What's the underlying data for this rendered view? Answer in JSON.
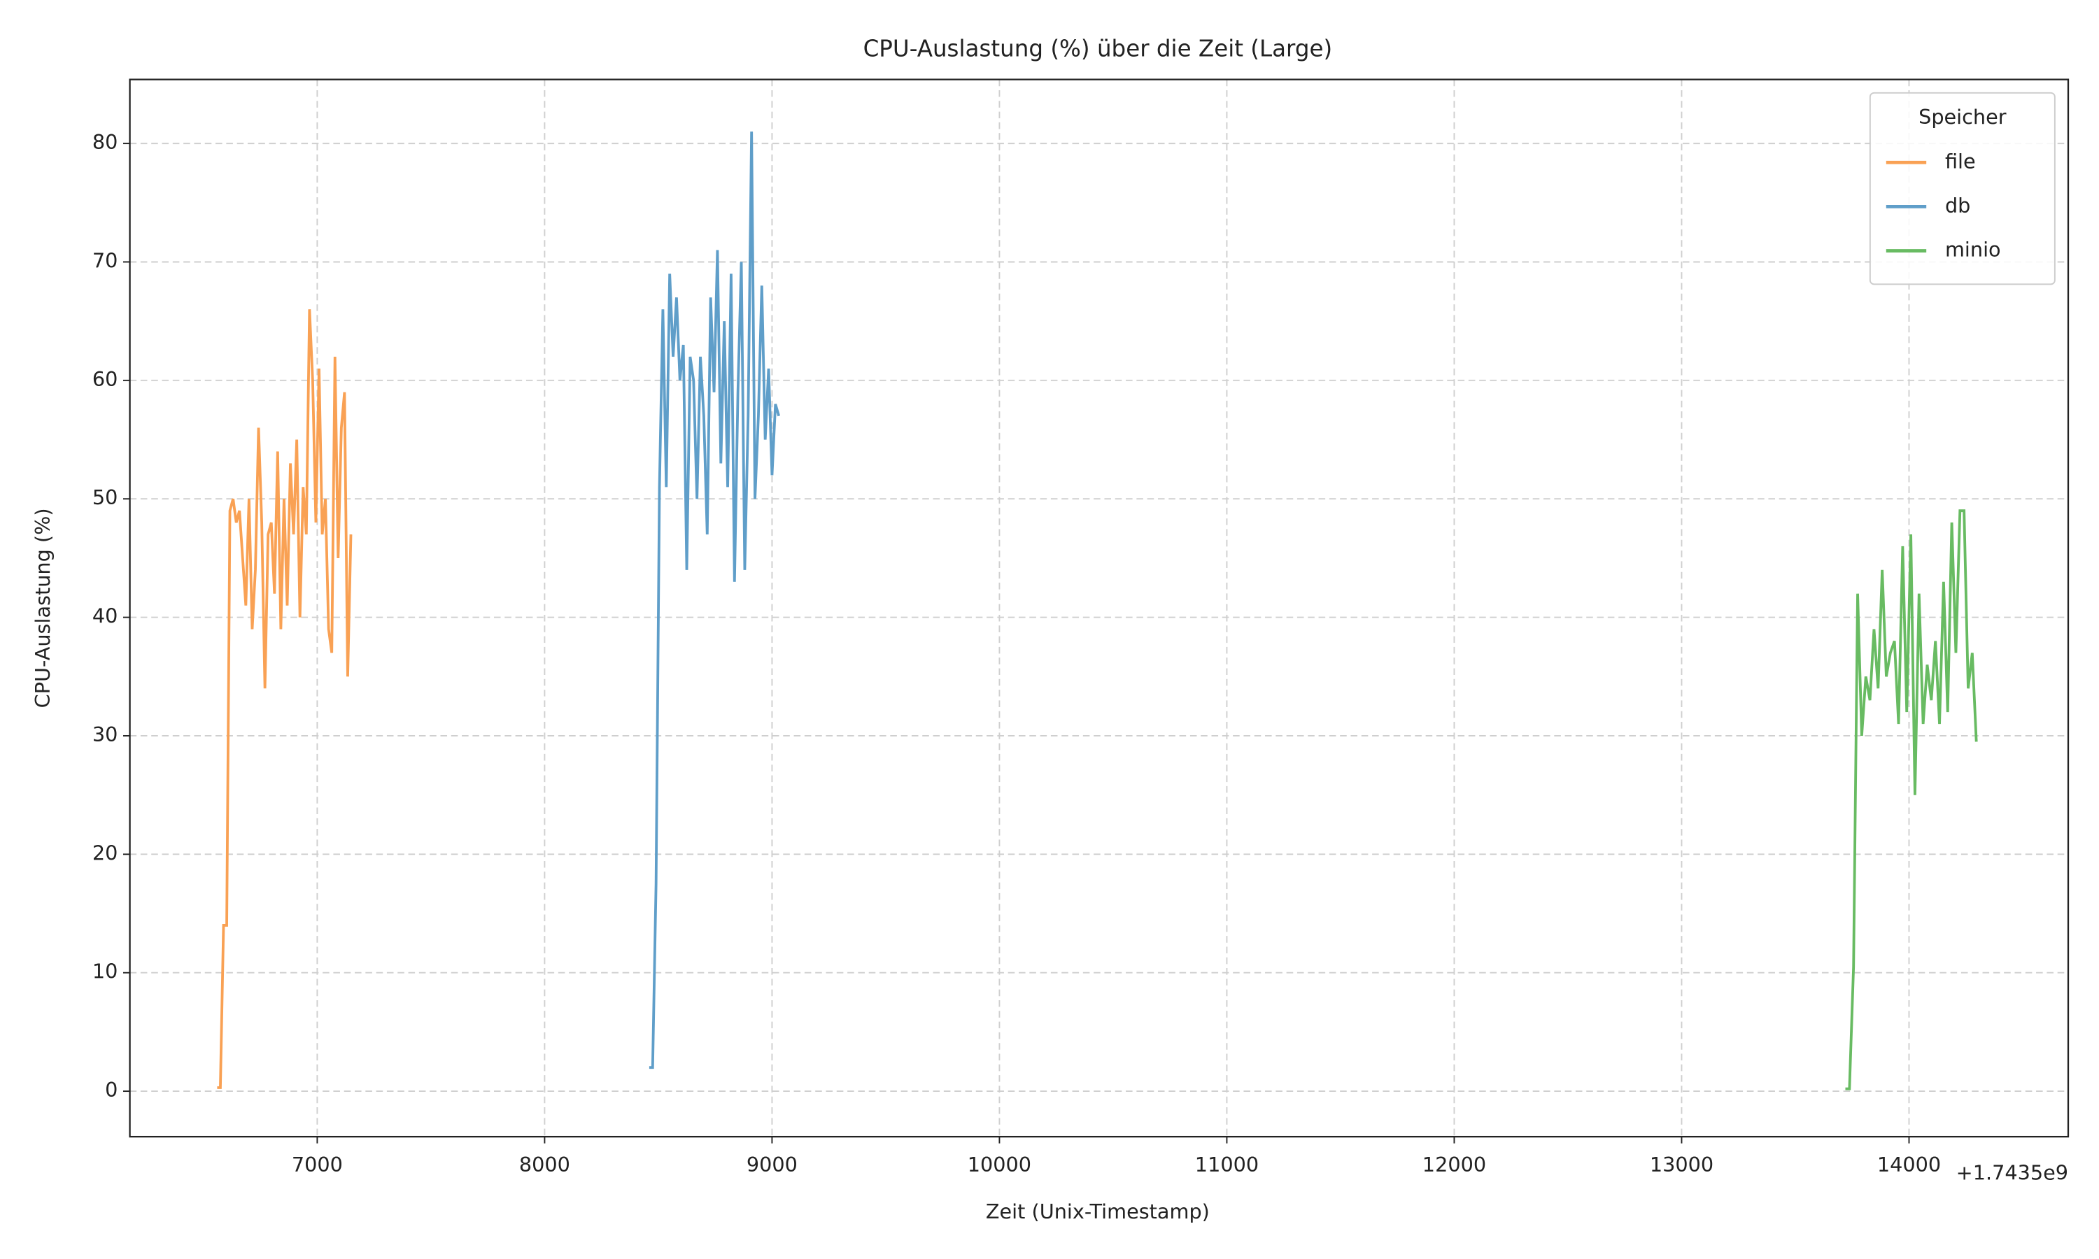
{
  "chart_data": {
    "type": "line",
    "title": "CPU-Auslastung (%) über die Zeit (Large)",
    "x_label": "Zeit (Unix-Timestamp)",
    "y_label": "CPU-Auslastung (%)",
    "x_offset_label": "+1.7435e9",
    "legend_title": "Speicher",
    "legend_position": "upper right",
    "grid": true,
    "xlim": [
      6176,
      14700
    ],
    "ylim": [
      -3.84,
      85.4
    ],
    "xticks": [
      7000,
      8000,
      9000,
      10000,
      11000,
      12000,
      13000,
      14000
    ],
    "yticks": [
      0,
      10,
      20,
      30,
      40,
      50,
      60,
      70,
      80
    ],
    "series": [
      {
        "name": "file",
        "color": "#f9a154",
        "x": [
          6560,
          6574,
          6588,
          6602,
          6616,
          6630,
          6644,
          6658,
          6672,
          6686,
          6700,
          6714,
          6728,
          6742,
          6756,
          6770,
          6784,
          6798,
          6812,
          6826,
          6840,
          6854,
          6868,
          6882,
          6896,
          6910,
          6924,
          6938,
          6952,
          6966,
          6980,
          6994,
          7008,
          7022,
          7036,
          7050,
          7064,
          7078,
          7092,
          7106,
          7120,
          7134,
          7148
        ],
        "values": [
          0.3,
          0.3,
          14,
          14,
          49,
          50,
          48,
          49,
          45,
          41,
          50,
          39,
          44,
          56,
          48,
          34,
          47,
          48,
          42,
          54,
          39,
          50,
          41,
          53,
          47,
          55,
          40,
          51,
          47,
          66,
          60,
          48,
          61,
          47,
          50,
          39,
          37,
          62,
          45,
          56,
          59,
          35,
          47
        ]
      },
      {
        "name": "db",
        "color": "#5f9ec9",
        "x": [
          8460,
          8475,
          8490,
          8505,
          8520,
          8535,
          8550,
          8565,
          8580,
          8595,
          8610,
          8625,
          8640,
          8655,
          8670,
          8685,
          8700,
          8715,
          8730,
          8745,
          8760,
          8775,
          8790,
          8805,
          8820,
          8835,
          8850,
          8865,
          8880,
          8895,
          8910,
          8925,
          8940,
          8955,
          8970,
          8985,
          9000,
          9015,
          9030
        ],
        "values": [
          2,
          2,
          17.5,
          51,
          66,
          51,
          69,
          62,
          67,
          60,
          63,
          44,
          62,
          60,
          50,
          62,
          57,
          47,
          67,
          59,
          71,
          53,
          65,
          51,
          69,
          43,
          59,
          70,
          44,
          57,
          81,
          50,
          57,
          68,
          55,
          61,
          52,
          58,
          57
        ]
      },
      {
        "name": "minio",
        "color": "#68bb62",
        "x": [
          13720,
          13738,
          13756,
          13774,
          13792,
          13810,
          13828,
          13846,
          13864,
          13882,
          13900,
          13918,
          13936,
          13954,
          13972,
          13990,
          14008,
          14026,
          14044,
          14062,
          14080,
          14098,
          14116,
          14134,
          14152,
          14170,
          14188,
          14206,
          14224,
          14242,
          14260,
          14278,
          14296
        ],
        "values": [
          0.2,
          0.2,
          10.5,
          42,
          30,
          35,
          33,
          39,
          34,
          44,
          35,
          37,
          38,
          31,
          46,
          32,
          47,
          25,
          42,
          31,
          36,
          33,
          38,
          31,
          43,
          32,
          48,
          37,
          49,
          49,
          34,
          37,
          29.5
        ]
      }
    ]
  }
}
